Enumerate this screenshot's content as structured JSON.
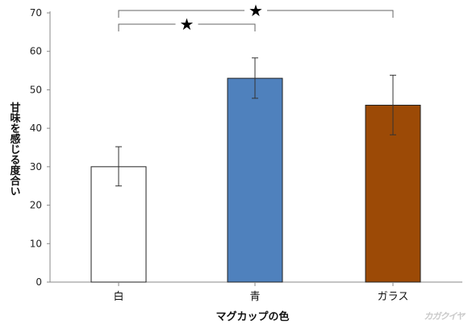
{
  "chart_data": {
    "type": "bar",
    "categories": [
      "白",
      "青",
      "ガラス"
    ],
    "values": [
      30,
      53,
      46
    ],
    "error_low": [
      25,
      47.8,
      38.3
    ],
    "error_high": [
      35.2,
      58.3,
      53.8
    ],
    "bar_colors": [
      "#ffffff",
      "#4f81bd",
      "#9c4a06"
    ],
    "bar_outline": "#222222",
    "xlabel": "マグカップの色",
    "ylabel": "甘味を感じる度合い",
    "ylim": [
      0,
      70
    ],
    "yticks": [
      0,
      10,
      20,
      30,
      40,
      50,
      60,
      70
    ],
    "grid": false,
    "significance": [
      {
        "from": 0,
        "to": 1,
        "mark": "★"
      },
      {
        "from": 0,
        "to": 2,
        "mark": "★"
      }
    ]
  },
  "watermark": "カガクイヤ"
}
